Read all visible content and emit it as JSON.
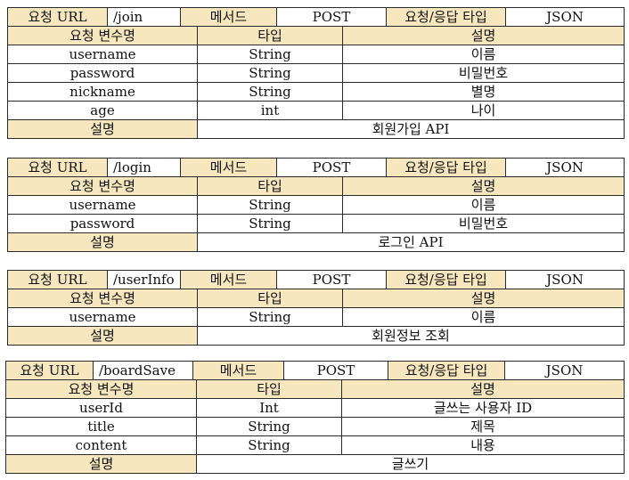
{
  "labels": {
    "request_url": "요청 URL",
    "method": "메서드",
    "req_res_type": "요청/응답 타입",
    "param_name": "요청 변수명",
    "type": "타입",
    "description": "설명"
  },
  "apis": [
    {
      "url": "/join",
      "method": "POST",
      "content_type": "JSON",
      "params": [
        {
          "name": "username",
          "type": "String",
          "desc": "이름"
        },
        {
          "name": "password",
          "type": "String",
          "desc": "비밀번호"
        },
        {
          "name": "nickname",
          "type": "String",
          "desc": "별명"
        },
        {
          "name": "age",
          "type": "int",
          "desc": "나이"
        }
      ],
      "summary": "회원가입 API"
    },
    {
      "url": "/login",
      "method": "POST",
      "content_type": "JSON",
      "params": [
        {
          "name": "username",
          "type": "String",
          "desc": "이름"
        },
        {
          "name": "password",
          "type": "String",
          "desc": "비밀번호"
        }
      ],
      "summary": "로그인 API"
    },
    {
      "url": "/userInfo",
      "method": "POST",
      "content_type": "JSON",
      "params": [
        {
          "name": "username",
          "type": "String",
          "desc": "이름"
        }
      ],
      "summary": "회원정보 조회"
    },
    {
      "url": "/boardSave",
      "method": "POST",
      "content_type": "JSON",
      "params": [
        {
          "name": "userId",
          "type": "Int",
          "desc": "글쓰는 사용자 ID"
        },
        {
          "name": "title",
          "type": "String",
          "desc": "제목"
        },
        {
          "name": "content",
          "type": "String",
          "desc": "내용"
        }
      ],
      "summary": "글쓰기"
    }
  ]
}
